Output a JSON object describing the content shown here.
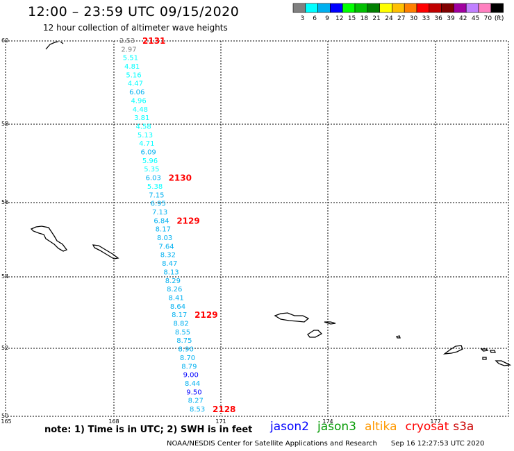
{
  "header": {
    "title": "12:00 – 23:59 UTC 09/15/2020",
    "subtitle": "12 hour collection of altimeter wave heights"
  },
  "legend": {
    "unit": "(ft)",
    "bins": [
      {
        "label": "3",
        "color": "#808080"
      },
      {
        "label": "6",
        "color": "#00ffff"
      },
      {
        "label": "9",
        "color": "#00b0f0"
      },
      {
        "label": "12",
        "color": "#0000ff"
      },
      {
        "label": "15",
        "color": "#00ff00"
      },
      {
        "label": "18",
        "color": "#00c000"
      },
      {
        "label": "21",
        "color": "#008000"
      },
      {
        "label": "24",
        "color": "#ffff00"
      },
      {
        "label": "27",
        "color": "#ffc000"
      },
      {
        "label": "30",
        "color": "#ff8000"
      },
      {
        "label": "33",
        "color": "#ff0000"
      },
      {
        "label": "36",
        "color": "#c00000"
      },
      {
        "label": "39",
        "color": "#800000"
      },
      {
        "label": "42",
        "color": "#a000a0"
      },
      {
        "label": "45",
        "color": "#c080ff"
      },
      {
        "label": "70",
        "color": "#ff80c0"
      },
      {
        "label": "",
        "color": "#000000"
      }
    ]
  },
  "axes": {
    "lat_labels": [
      "60",
      "58",
      "56",
      "54",
      "52",
      "50"
    ],
    "lon_labels": [
      "165",
      "168",
      "171",
      "174",
      "177"
    ]
  },
  "track": {
    "values": [
      "2.53",
      "2.97",
      "5.51",
      "4.81",
      "5.16",
      "4.47",
      "6.06",
      "4.96",
      "4.48",
      "3.81",
      "4.58",
      "5.13",
      "4.71",
      "6.09",
      "5.96",
      "5.35",
      "6.03",
      "5.38",
      "7.15",
      "6.95",
      "7.13",
      "6.84",
      "8.17",
      "8.03",
      "7.64",
      "8.32",
      "8.47",
      "8.13",
      "8.29",
      "8.26",
      "8.41",
      "8.64",
      "8.17",
      "8.82",
      "8.55",
      "8.75",
      "8.90",
      "8.70",
      "8.79",
      "9.00",
      "8.44",
      "9.50",
      "8.27",
      "8.53"
    ],
    "time_marks": [
      {
        "label": "2131",
        "index": 0
      },
      {
        "label": "2130",
        "index": 16
      },
      {
        "label": "2129",
        "index": 21
      },
      {
        "label": "2129",
        "index": 32
      },
      {
        "label": "2128",
        "index": 43
      }
    ]
  },
  "footer": {
    "note": "note: 1) Time is in UTC; 2) SWH is in feet",
    "satellites": [
      {
        "name": "jason2",
        "color": "#0000ff"
      },
      {
        "name": "jason3",
        "color": "#009900"
      },
      {
        "name": "altika",
        "color": "#ff9900"
      },
      {
        "name": "cryosat",
        "color": "#ff0000"
      },
      {
        "name": "s3a",
        "color": "#cc0000"
      }
    ],
    "credit": "NOAA/NESDIS Center for Satellite Applications and Research",
    "timestamp": "Sep 16 12:27:53 UTC 2020"
  }
}
